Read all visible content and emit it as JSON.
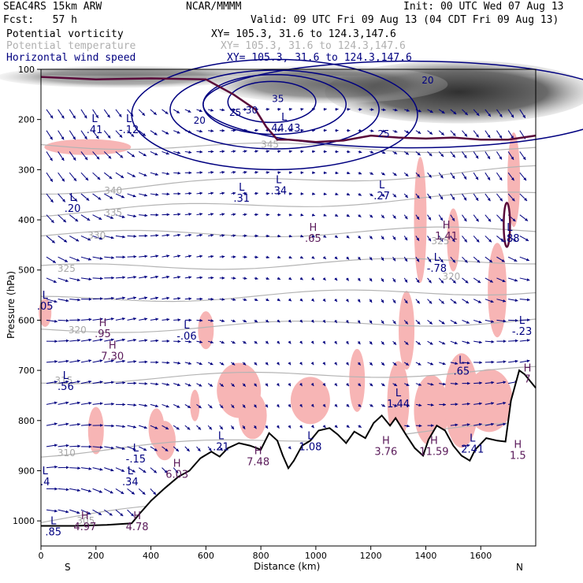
{
  "header": {
    "model": "SEAC4RS 15km ARW",
    "forecast": "Fcst:   57 h",
    "center": "NCAR/MMMM",
    "init": "Init: 00 UTC Wed 07 Aug 13",
    "valid": "Valid: 09 UTC Fri 09 Aug 13 (04 CDT Fri 09 Aug 13)"
  },
  "legend": [
    {
      "label": "Potential vorticity",
      "xy": "XY= 105.3, 31.6 to 124.3,147.6",
      "color": "#000000"
    },
    {
      "label": "Potential temperature",
      "xy": "XY= 105.3, 31.6 to 124.3,147.6",
      "color": "#b4b4b4"
    },
    {
      "label": "Horizontal wind speed",
      "xy": "XY= 105.3, 31.6 to 124.3,147.6",
      "color": "#000080"
    }
  ],
  "chart_data": {
    "type": "cross-section",
    "xlabel": "Distance (km)",
    "ylabel": "Pressure (hPa)",
    "xlim": [
      0,
      1800
    ],
    "ylim": [
      1050,
      100
    ],
    "x_ticks": [
      0,
      200,
      400,
      600,
      800,
      1000,
      1200,
      1400,
      1600
    ],
    "y_ticks": [
      100,
      200,
      300,
      400,
      500,
      600,
      700,
      800,
      900,
      1000
    ],
    "x_end_labels": {
      "left": "S",
      "right": "N"
    },
    "terrain_surface": [
      [
        0,
        1010
      ],
      [
        120,
        1010
      ],
      [
        240,
        1008
      ],
      [
        330,
        1005
      ],
      [
        360,
        985
      ],
      [
        400,
        960
      ],
      [
        450,
        935
      ],
      [
        500,
        912
      ],
      [
        540,
        900
      ],
      [
        580,
        875
      ],
      [
        620,
        862
      ],
      [
        650,
        872
      ],
      [
        680,
        855
      ],
      [
        720,
        845
      ],
      [
        760,
        850
      ],
      [
        800,
        858
      ],
      [
        830,
        825
      ],
      [
        860,
        840
      ],
      [
        880,
        870
      ],
      [
        900,
        895
      ],
      [
        920,
        880
      ],
      [
        950,
        850
      ],
      [
        980,
        840
      ],
      [
        1010,
        820
      ],
      [
        1050,
        815
      ],
      [
        1080,
        828
      ],
      [
        1110,
        845
      ],
      [
        1140,
        822
      ],
      [
        1180,
        835
      ],
      [
        1210,
        805
      ],
      [
        1240,
        790
      ],
      [
        1270,
        810
      ],
      [
        1290,
        795
      ],
      [
        1330,
        830
      ],
      [
        1360,
        855
      ],
      [
        1390,
        870
      ],
      [
        1410,
        838
      ],
      [
        1440,
        810
      ],
      [
        1470,
        820
      ],
      [
        1500,
        850
      ],
      [
        1530,
        870
      ],
      [
        1560,
        880
      ],
      [
        1580,
        858
      ],
      [
        1620,
        835
      ],
      [
        1660,
        840
      ],
      [
        1690,
        842
      ],
      [
        1710,
        760
      ],
      [
        1740,
        700
      ],
      [
        1760,
        708
      ],
      [
        1800,
        735
      ]
    ],
    "wind_speed_contours": [
      {
        "label": "20",
        "x": 555,
        "p": 208
      },
      {
        "label": "25",
        "x": 685,
        "p": 193
      },
      {
        "label": "30",
        "x": 745,
        "p": 188
      },
      {
        "label": "35",
        "x": 840,
        "p": 165
      },
      {
        "label": "25",
        "x": 1225,
        "p": 235
      },
      {
        "label": "20",
        "x": 1385,
        "p": 128
      }
    ],
    "theta_labels": [
      {
        "label": "345",
        "x": 800,
        "p": 250
      },
      {
        "label": "340",
        "x": 230,
        "p": 342
      },
      {
        "label": "335",
        "x": 230,
        "p": 386
      },
      {
        "label": "330",
        "x": 170,
        "p": 431
      },
      {
        "label": "325",
        "x": 60,
        "p": 497
      },
      {
        "label": "325",
        "x": 1420,
        "p": 442
      },
      {
        "label": "320",
        "x": 100,
        "p": 620
      },
      {
        "label": "320",
        "x": 1460,
        "p": 513
      },
      {
        "label": "315",
        "x": 50,
        "p": 720
      },
      {
        "label": "310",
        "x": 60,
        "p": 865
      },
      {
        "label": "305",
        "x": 130,
        "p": 1000
      }
    ],
    "extrema": [
      {
        "type": "L",
        "value": ".41",
        "x": 195,
        "p": 208
      },
      {
        "type": "L",
        "value": "-.12",
        "x": 320,
        "p": 208
      },
      {
        "type": "L",
        "value": ".44.43",
        "x": 885,
        "p": 205
      },
      {
        "type": "L",
        "value": ".31",
        "x": 730,
        "p": 345
      },
      {
        "type": "L",
        "value": ".34",
        "x": 865,
        "p": 330
      },
      {
        "type": "L",
        "value": ".27",
        "x": 1240,
        "p": 340
      },
      {
        "type": "L",
        "value": ".20",
        "x": 115,
        "p": 365
      },
      {
        "type": "H",
        "value": ".65",
        "x": 990,
        "p": 425
      },
      {
        "type": "H",
        "value": "1.41",
        "x": 1475,
        "p": 420
      },
      {
        "type": "L",
        "value": "-.88",
        "x": 1705,
        "p": 425
      },
      {
        "type": "L",
        "value": "-.78",
        "x": 1440,
        "p": 485
      },
      {
        "type": "L",
        "value": ".05",
        "x": 15,
        "p": 560
      },
      {
        "type": "H",
        "value": ".95",
        "x": 225,
        "p": 615
      },
      {
        "type": "H",
        "value": "7.30",
        "x": 260,
        "p": 660
      },
      {
        "type": "L",
        "value": "-.06",
        "x": 530,
        "p": 620
      },
      {
        "type": "L",
        "value": ".56",
        "x": 90,
        "p": 720
      },
      {
        "type": "L",
        "value": ".65",
        "x": 1530,
        "p": 690
      },
      {
        "type": "L",
        "value": "1.44",
        "x": 1300,
        "p": 755
      },
      {
        "type": "H",
        "value": "7",
        "x": 1770,
        "p": 705
      },
      {
        "type": "L",
        "value": "-.23",
        "x": 1750,
        "p": 610
      },
      {
        "type": "L",
        "value": ".21",
        "x": 655,
        "p": 840
      },
      {
        "type": "L",
        "value": "-.15",
        "x": 345,
        "p": 865
      },
      {
        "type": "L",
        "value": ".34",
        "x": 325,
        "p": 910
      },
      {
        "type": "H",
        "value": "6.03",
        "x": 495,
        "p": 895
      },
      {
        "type": "H",
        "value": "7.48",
        "x": 790,
        "p": 870
      },
      {
        "type": "L",
        "value": "1.08",
        "x": 980,
        "p": 840
      },
      {
        "type": "H",
        "value": "3.76",
        "x": 1255,
        "p": 850
      },
      {
        "type": "H",
        "value": "11.59",
        "x": 1430,
        "p": 850
      },
      {
        "type": "L",
        "value": "2.41",
        "x": 1570,
        "p": 845
      },
      {
        "type": "H",
        "value": "1.5",
        "x": 1735,
        "p": 858
      },
      {
        "type": "H",
        "value": "4.97",
        "x": 160,
        "p": 1000
      },
      {
        "type": "H",
        "value": "4.78",
        "x": 350,
        "p": 1000
      },
      {
        "type": "L",
        "value": ".85",
        "x": 45,
        "p": 1010
      },
      {
        "type": "L",
        "value": ".4",
        "x": 15,
        "p": 910
      }
    ]
  }
}
